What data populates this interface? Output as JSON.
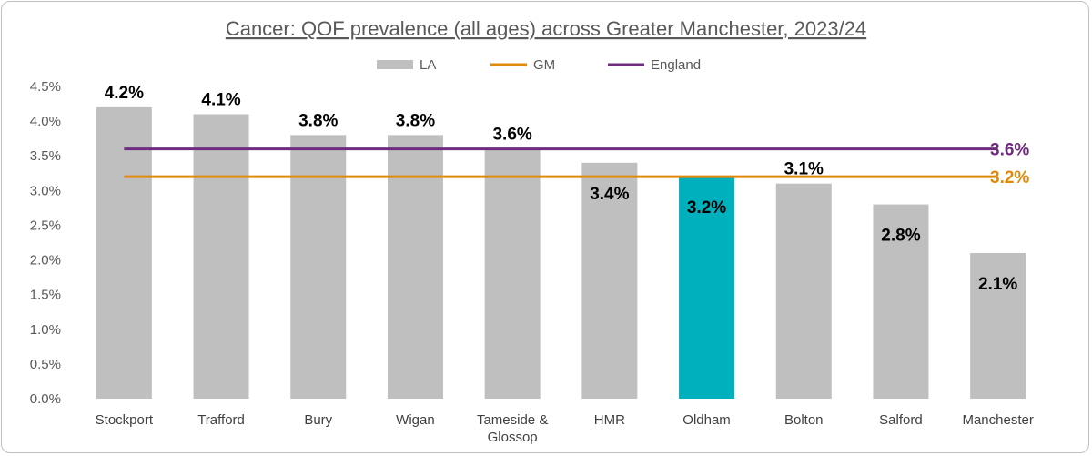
{
  "chart_data": {
    "type": "bar",
    "title": "Cancer: QOF prevalence (all ages) across Greater Manchester, 2023/24",
    "categories": [
      [
        "Stockport"
      ],
      [
        "Trafford"
      ],
      [
        "Bury"
      ],
      [
        "Wigan"
      ],
      [
        "Tameside &",
        "Glossop"
      ],
      [
        "HMR"
      ],
      [
        "Oldham"
      ],
      [
        "Bolton"
      ],
      [
        "Salford"
      ],
      [
        "Manchester"
      ]
    ],
    "series": [
      {
        "name": "LA",
        "values": [
          4.2,
          4.1,
          3.8,
          3.8,
          3.6,
          3.4,
          3.2,
          3.1,
          2.8,
          2.1
        ],
        "labels": [
          "4.2%",
          "4.1%",
          "3.8%",
          "3.8%",
          "3.6%",
          "3.4%",
          "3.2%",
          "3.1%",
          "2.8%",
          "2.1%"
        ]
      }
    ],
    "label_inside": [
      false,
      false,
      false,
      false,
      false,
      true,
      true,
      false,
      true,
      true
    ],
    "highlight_index": 6,
    "reference_lines": [
      {
        "name": "GM",
        "value": 3.2,
        "label": "3.2%",
        "color": "#e08a0b"
      },
      {
        "name": "England",
        "value": 3.6,
        "label": "3.6%",
        "color": "#6f2c7f"
      }
    ],
    "ylim": [
      0,
      4.5
    ],
    "yticks": [
      "0.0%",
      "0.5%",
      "1.0%",
      "1.5%",
      "2.0%",
      "2.5%",
      "3.0%",
      "3.5%",
      "4.0%",
      "4.5%"
    ],
    "ytick_step": 0.5,
    "legend_placement": "top-center",
    "grid": false,
    "colors": {
      "bar": "#bfbfbf",
      "highlight": "#00b0bd"
    }
  }
}
